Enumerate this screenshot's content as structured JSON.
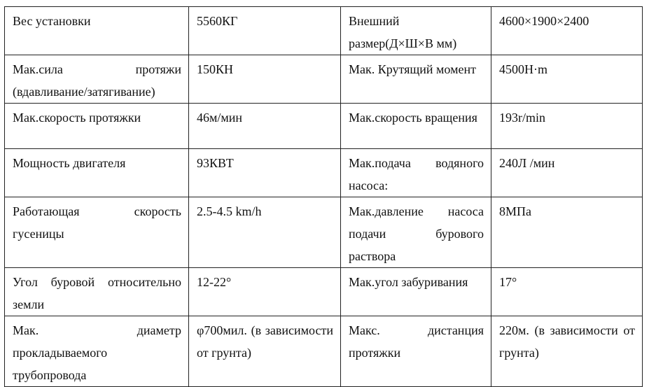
{
  "rows": [
    {
      "p1": "Вес установки",
      "v1": "5560КГ",
      "p2": "Внешний размер(Д×Ш×В мм)",
      "v2": "4600×1900×2400"
    },
    {
      "p1": "Мак.сила протяжи (вдавливание/затягивание)",
      "v1": "150КН",
      "p2": "Мак. Крутящий момент",
      "v2": "4500Н·m"
    },
    {
      "p1": "Мак.скорость протяжки",
      "v1": "46м/мин",
      "p2": "Мак.скорость вращения",
      "v2": "193r/min"
    },
    {
      "p1": "Мощность двигателя",
      "v1": "93КВТ",
      "p2": "Мак.подача водяного насоса:",
      "v2": "240Л /мин"
    },
    {
      "p1": "Работающая скорость гусеницы",
      "v1": "2.5-4.5 km/h",
      "p2": "Мак.давление насоса подачи бурового раствора",
      "v2": "8МПа"
    },
    {
      "p1": "Угол буровой относительно земли",
      "v1": "12-22°",
      "p2": "Мак.угол забуривания",
      "v2": "17°"
    },
    {
      "p1": "Мак. диаметр прокладываемого трубопровода",
      "v1": "φ700мил. (в зависимости от грунта)",
      "p2": "Макс. дистанция протяжки",
      "v2": "220м. (в зависимости от грунта)"
    }
  ]
}
